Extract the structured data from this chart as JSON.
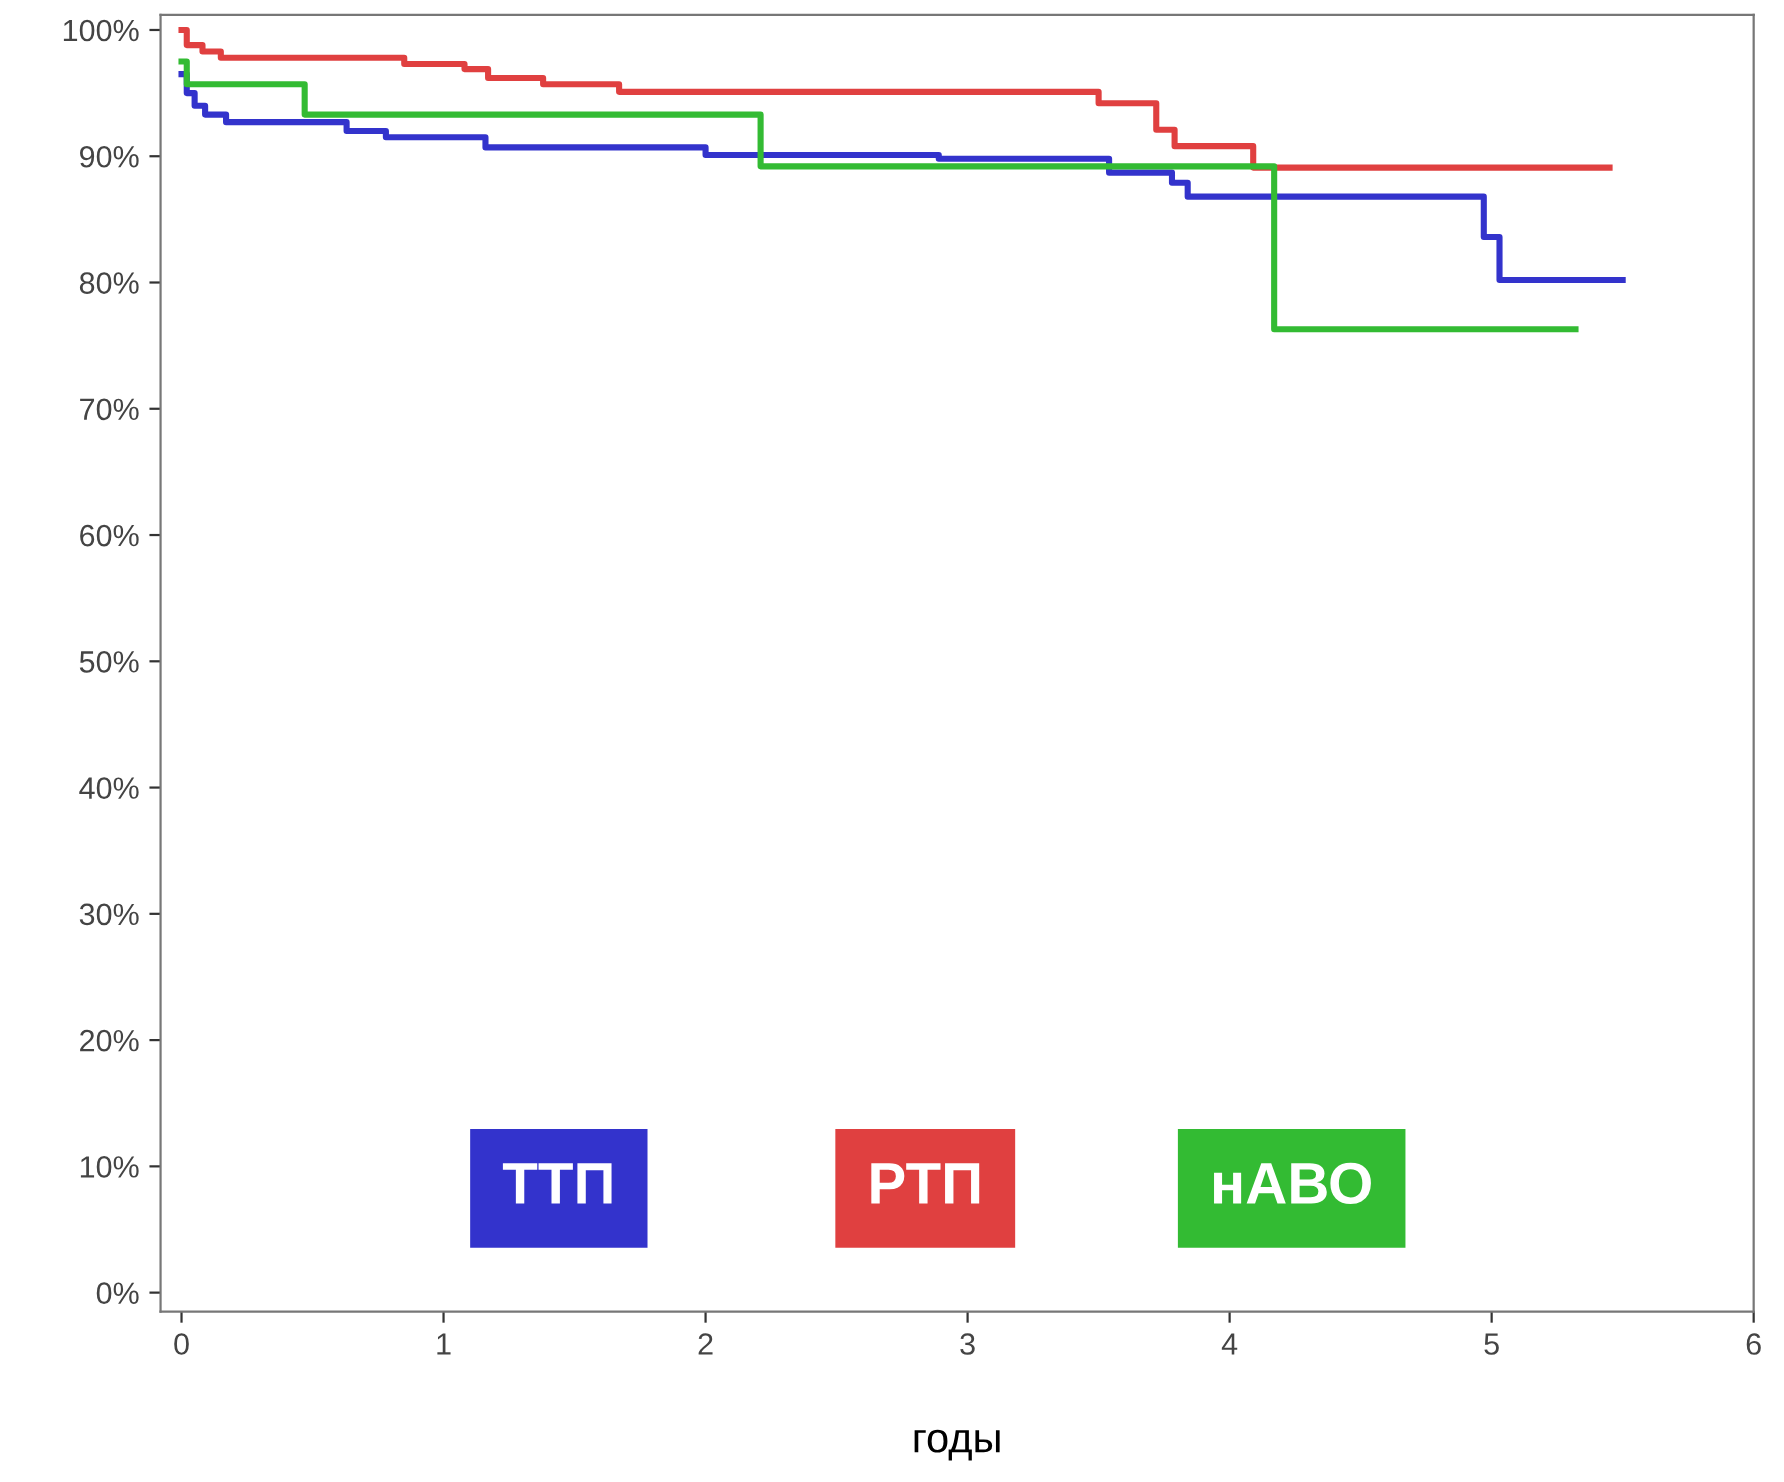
{
  "chart_data": {
    "type": "step",
    "xlabel": "годы",
    "xlim": [
      -0.08,
      6
    ],
    "xticks": [
      0,
      1,
      2,
      3,
      4,
      5,
      6
    ],
    "ylim": [
      -1.5,
      101.2
    ],
    "yticks": [
      {
        "value": 0,
        "label": "0%"
      },
      {
        "value": 10,
        "label": "10%"
      },
      {
        "value": 20,
        "label": "20%"
      },
      {
        "value": 30,
        "label": "30%"
      },
      {
        "value": 40,
        "label": "40%"
      },
      {
        "value": 50,
        "label": "50%"
      },
      {
        "value": 60,
        "label": "60%"
      },
      {
        "value": 70,
        "label": "70%"
      },
      {
        "value": 80,
        "label": "80%"
      },
      {
        "value": 90,
        "label": "90%"
      },
      {
        "value": 100,
        "label": "100%"
      }
    ],
    "grid": false,
    "legend": "bottom",
    "line_style": "solid",
    "marker": "none",
    "series": [
      {
        "name": "ТТП",
        "color": "#3333cc",
        "x": [
          0,
          0.02,
          0.05,
          0.09,
          0.17,
          0.63,
          0.78,
          1.16,
          2.0,
          2.89,
          3.54,
          3.78,
          3.84,
          4.97,
          5.03,
          5.5
        ],
        "values": [
          96.5,
          95,
          94,
          93.3,
          92.7,
          92.0,
          91.5,
          90.7,
          90.1,
          89.8,
          88.7,
          87.9,
          86.8,
          83.6,
          80.2,
          80.2
        ]
      },
      {
        "name": "РТП",
        "color": "#e04040",
        "x": [
          0,
          0.02,
          0.08,
          0.15,
          0.85,
          1.08,
          1.17,
          1.38,
          1.67,
          3.5,
          3.72,
          3.79,
          4.09,
          5.45
        ],
        "values": [
          100,
          98.8,
          98.3,
          97.8,
          97.3,
          96.9,
          96.2,
          95.7,
          95.1,
          94.2,
          92.1,
          90.8,
          89.1,
          89.1
        ]
      },
      {
        "name": "нАВО",
        "color": "#33bb33",
        "x": [
          0,
          0.02,
          0.47,
          2.21,
          4.17,
          5.32
        ],
        "values": [
          97.5,
          95.7,
          93.3,
          89.2,
          76.3,
          76.3
        ]
      }
    ]
  }
}
